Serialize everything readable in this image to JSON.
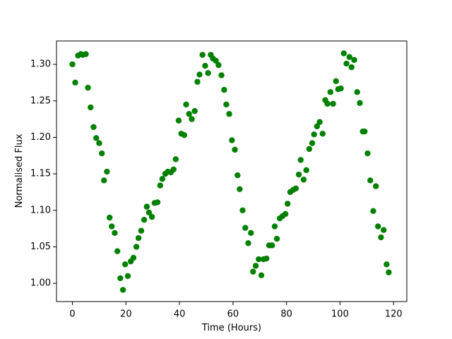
{
  "chart_data": {
    "type": "scatter",
    "xlabel": "Time (Hours)",
    "ylabel": "Normalised Flux",
    "color": "#008000",
    "x": [
      0,
      1.05,
      2.1,
      3.15,
      3.9,
      5.0,
      5.8,
      6.8,
      7.9,
      8.9,
      10.0,
      11.0,
      11.8,
      12.9,
      13.9,
      14.7,
      15.8,
      16.8,
      17.9,
      18.9,
      19.7,
      20.7,
      21.8,
      22.8,
      23.9,
      24.7,
      25.7,
      26.8,
      27.8,
      28.6,
      29.7,
      30.7,
      31.8,
      32.8,
      33.6,
      34.7,
      35.7,
      36.8,
      37.8,
      38.6,
      39.7,
      40.7,
      41.8,
      42.5,
      43.6,
      44.6,
      45.7,
      46.7,
      47.5,
      48.6,
      49.6,
      50.7,
      51.7,
      52.5,
      53.6,
      54.6,
      55.7,
      56.7,
      57.5,
      58.6,
      59.6,
      60.7,
      61.7,
      62.5,
      63.6,
      64.6,
      65.7,
      66.7,
      67.5,
      68.5,
      69.6,
      70.6,
      71.4,
      72.5,
      73.5,
      74.6,
      75.6,
      76.4,
      77.5,
      78.5,
      79.6,
      80.4,
      81.4,
      82.5,
      83.5,
      84.6,
      85.3,
      86.4,
      87.4,
      88.5,
      89.6,
      90.3,
      91.4,
      92.4,
      93.5,
      94.5,
      95.3,
      96.4,
      97.4,
      98.5,
      99.3,
      100.3,
      101.4,
      102.4,
      103.5,
      104.3,
      105.3,
      106.4,
      107.4,
      108.5,
      109.2,
      110.3,
      111.3,
      112.4,
      113.4,
      114.2,
      115.3,
      116.3,
      117.4,
      118.2
    ],
    "values": [
      1.3,
      1.275,
      1.312,
      1.314,
      1.313,
      1.314,
      1.268,
      1.241,
      1.214,
      1.199,
      1.192,
      1.178,
      1.141,
      1.153,
      1.09,
      1.078,
      1.069,
      1.044,
      1.007,
      0.991,
      1.026,
      1.01,
      1.03,
      1.035,
      1.05,
      1.062,
      1.072,
      1.087,
      1.105,
      1.097,
      1.091,
      1.11,
      1.111,
      1.134,
      1.143,
      1.15,
      1.153,
      1.152,
      1.156,
      1.17,
      1.223,
      1.205,
      1.203,
      1.245,
      1.232,
      1.225,
      1.236,
      1.276,
      1.286,
      1.313,
      1.298,
      1.288,
      1.313,
      1.308,
      1.305,
      1.299,
      1.285,
      1.265,
      1.245,
      1.232,
      1.196,
      1.183,
      1.148,
      1.129,
      1.1,
      1.076,
      1.055,
      1.069,
      1.016,
      1.024,
      1.033,
      1.011,
      1.033,
      1.034,
      1.052,
      1.052,
      1.078,
      1.061,
      1.089,
      1.092,
      1.095,
      1.109,
      1.125,
      1.128,
      1.13,
      1.149,
      1.169,
      1.142,
      1.155,
      1.184,
      1.192,
      1.204,
      1.215,
      1.221,
      1.205,
      1.251,
      1.246,
      1.262,
      1.246,
      1.277,
      1.266,
      1.267,
      1.315,
      1.301,
      1.31,
      1.296,
      1.306,
      1.262,
      1.247,
      1.208,
      1.208,
      1.178,
      1.141,
      1.099,
      1.133,
      1.078,
      1.063,
      1.073,
      1.026,
      1.015
    ],
    "xlim": [
      -5.95,
      124.95
    ],
    "ylim": [
      0.975,
      1.332
    ],
    "xticks": [
      0,
      20,
      40,
      60,
      80,
      100,
      120
    ],
    "yticks": [
      {
        "value": 1.0,
        "label": "1.00"
      },
      1.05,
      {
        "value": 1.1,
        "label": "1.10"
      },
      1.15,
      {
        "value": 1.2,
        "label": "1.20"
      },
      1.25,
      {
        "value": 1.3,
        "label": "1.30"
      }
    ]
  }
}
